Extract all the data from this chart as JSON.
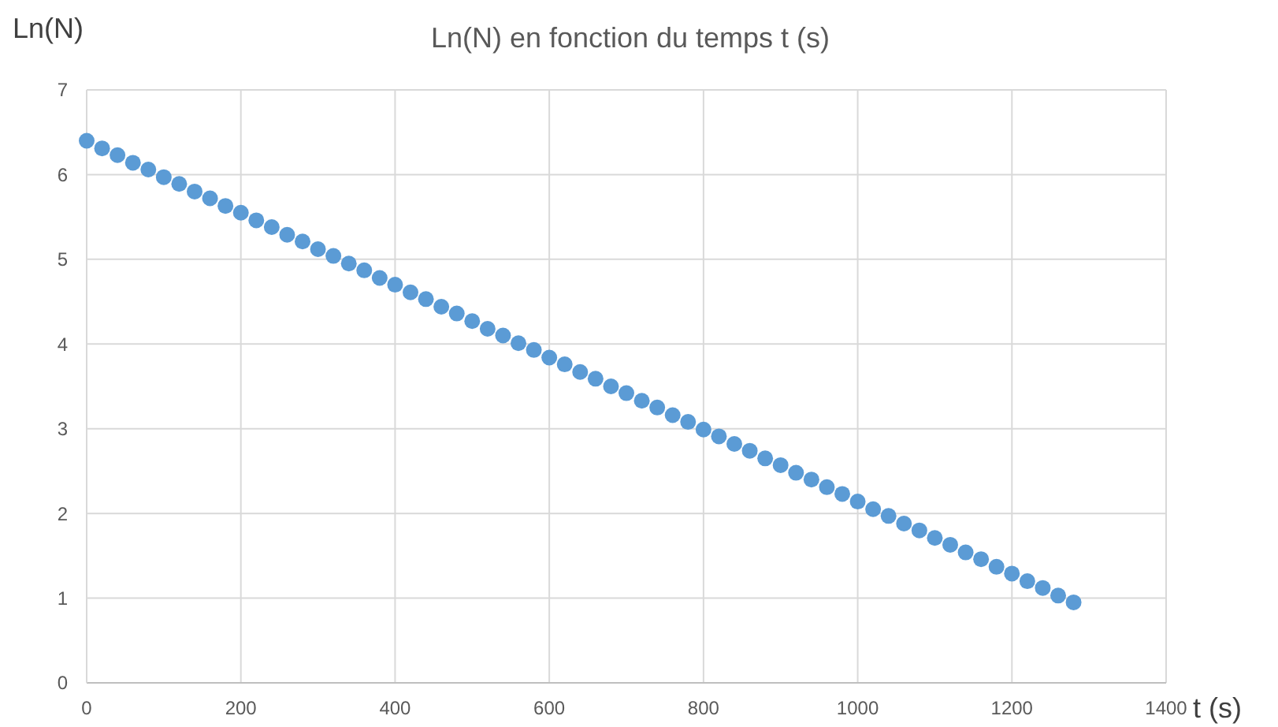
{
  "chart_data": {
    "type": "scatter",
    "title": "Ln(N) en fonction du temps t (s)",
    "xlabel": "t (s)",
    "ylabel": "Ln(N)",
    "x": [
      0,
      20,
      40,
      60,
      80,
      100,
      120,
      140,
      160,
      180,
      200,
      220,
      240,
      260,
      280,
      300,
      320,
      340,
      360,
      380,
      400,
      420,
      440,
      460,
      480,
      500,
      520,
      540,
      560,
      580,
      600,
      620,
      640,
      660,
      680,
      700,
      720,
      740,
      760,
      780,
      800,
      820,
      840,
      860,
      880,
      900,
      920,
      940,
      960,
      980,
      1000,
      1020,
      1040,
      1060,
      1080,
      1100,
      1120,
      1140,
      1160,
      1180,
      1200,
      1220,
      1240,
      1260,
      1280
    ],
    "series": [
      {
        "color": "#5b9bd5",
        "values": [
          6.4,
          6.31,
          6.23,
          6.14,
          6.06,
          5.97,
          5.89,
          5.8,
          5.72,
          5.63,
          5.55,
          5.46,
          5.38,
          5.29,
          5.21,
          5.12,
          5.04,
          4.95,
          4.87,
          4.78,
          4.7,
          4.61,
          4.53,
          4.44,
          4.36,
          4.27,
          4.18,
          4.1,
          4.01,
          3.93,
          3.84,
          3.76,
          3.67,
          3.59,
          3.5,
          3.42,
          3.33,
          3.25,
          3.16,
          3.08,
          2.99,
          2.91,
          2.82,
          2.74,
          2.65,
          2.57,
          2.48,
          2.4,
          2.31,
          2.23,
          2.14,
          2.05,
          1.97,
          1.88,
          1.8,
          1.71,
          1.63,
          1.54,
          1.46,
          1.37,
          1.29,
          1.2,
          1.12,
          1.03,
          0.95
        ]
      }
    ],
    "xlim": [
      0,
      1400
    ],
    "xticks": [
      0,
      200,
      400,
      600,
      800,
      1000,
      1200,
      1400
    ],
    "ylim": [
      0,
      7
    ],
    "yticks": [
      0,
      1,
      2,
      3,
      4,
      5,
      6,
      7
    ],
    "grid": true,
    "marker": "circle"
  }
}
